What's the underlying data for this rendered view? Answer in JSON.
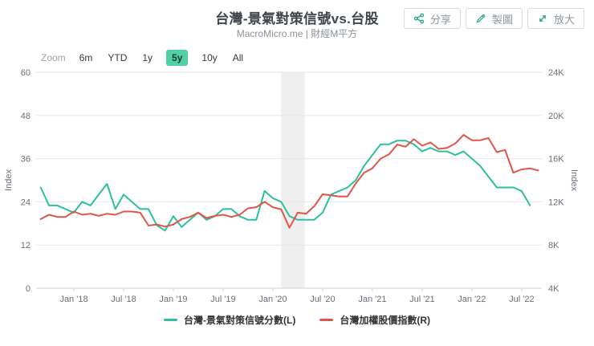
{
  "header": {
    "title": "台灣-景氣對策信號vs.台股",
    "subtitle": "MacroMicro.me | 財經M平方",
    "buttons": [
      {
        "id": "share",
        "icon": "share-nodes-icon",
        "label": "分享"
      },
      {
        "id": "make-chart",
        "icon": "pencil-icon",
        "label": "製圖"
      },
      {
        "id": "enlarge",
        "icon": "expand-icon",
        "label": "放大"
      }
    ]
  },
  "toolbar": {
    "zoom_label": "Zoom",
    "ranges": [
      {
        "label": "6m",
        "selected": false
      },
      {
        "label": "YTD",
        "selected": false
      },
      {
        "label": "1y",
        "selected": false
      },
      {
        "label": "5y",
        "selected": true
      },
      {
        "label": "10y",
        "selected": false
      },
      {
        "label": "All",
        "selected": false
      }
    ]
  },
  "colors": {
    "signal_line": "#2dbf9e",
    "taiex_line": "#e15549",
    "grid": "#e7e7e7",
    "axis_line": "#ccd2d8",
    "tick_text": "#67707a",
    "recession_band": "#efefef",
    "accent_teal": "#2aa98b"
  },
  "chart_data": {
    "type": "line",
    "title": "台灣-景氣對策信號vs.台股",
    "x_ticks": [
      {
        "label": "Jan '18",
        "month": "2018-01"
      },
      {
        "label": "Jul '18",
        "month": "2018-07"
      },
      {
        "label": "Jan '19",
        "month": "2019-01"
      },
      {
        "label": "Jul '19",
        "month": "2019-07"
      },
      {
        "label": "Jan '20",
        "month": "2020-01"
      },
      {
        "label": "Jul '20",
        "month": "2020-07"
      },
      {
        "label": "Jan '21",
        "month": "2021-01"
      },
      {
        "label": "Jul '21",
        "month": "2021-07"
      },
      {
        "label": "Jan '22",
        "month": "2022-01"
      },
      {
        "label": "Jul '22",
        "month": "2022-07"
      }
    ],
    "y_left": {
      "title": "Index",
      "min": 0,
      "max": 60,
      "ticks": [
        {
          "value": 0,
          "label": "0"
        },
        {
          "value": 12,
          "label": "12"
        },
        {
          "value": 24,
          "label": "24"
        },
        {
          "value": 36,
          "label": "36"
        },
        {
          "value": 48,
          "label": "48"
        },
        {
          "value": 60,
          "label": "60"
        }
      ]
    },
    "y_right": {
      "title": "Index",
      "min": 4,
      "max": 24,
      "unit": "K",
      "ticks": [
        {
          "value": 4,
          "label": "4K"
        },
        {
          "value": 8,
          "label": "8K"
        },
        {
          "value": 12,
          "label": "12K"
        },
        {
          "value": 16,
          "label": "16K"
        },
        {
          "value": 20,
          "label": "20K"
        },
        {
          "value": 24,
          "label": "24K"
        }
      ]
    },
    "recession_band": {
      "from": "2020-02",
      "to": "2020-04"
    },
    "series": [
      {
        "name": "台灣-景氣對策信號分數(L)",
        "axis": "left",
        "color": "#2dbf9e",
        "start_month": "2017-09",
        "values": [
          28,
          23,
          23,
          22,
          21,
          24,
          23,
          26,
          29,
          22,
          26,
          24,
          22,
          22,
          17.5,
          16,
          20,
          17,
          19,
          21,
          19,
          20,
          22,
          22,
          20,
          19,
          19,
          27,
          25,
          24,
          20,
          19,
          19,
          19,
          21,
          26,
          27,
          28,
          30,
          34,
          37,
          40,
          40,
          41,
          41,
          40,
          38,
          39,
          38,
          38,
          37,
          38,
          36,
          34,
          31,
          28,
          28,
          28,
          27,
          23
        ]
      },
      {
        "name": "台灣加權股價指數(R)",
        "axis": "right",
        "color": "#e15549",
        "start_month": "2017-09",
        "unit": "K",
        "values": [
          10.4,
          10.8,
          10.6,
          10.6,
          11.1,
          10.8,
          10.9,
          10.7,
          10.9,
          10.8,
          11.1,
          11.1,
          11.0,
          9.8,
          9.9,
          9.7,
          9.9,
          10.4,
          10.6,
          11.0,
          10.5,
          10.7,
          10.8,
          10.6,
          10.8,
          11.4,
          11.5,
          12.0,
          11.5,
          11.3,
          9.6,
          11.0,
          10.9,
          11.6,
          12.7,
          12.6,
          12.5,
          12.5,
          13.7,
          14.7,
          15.1,
          16.0,
          16.4,
          17.3,
          17.1,
          17.8,
          17.2,
          17.5,
          16.9,
          17.0,
          17.4,
          18.2,
          17.7,
          17.7,
          17.9,
          16.6,
          16.8,
          14.7,
          15.0,
          15.1,
          14.9
        ]
      }
    ],
    "legend_position": "bottom-center",
    "grid": "horizontal-only"
  }
}
